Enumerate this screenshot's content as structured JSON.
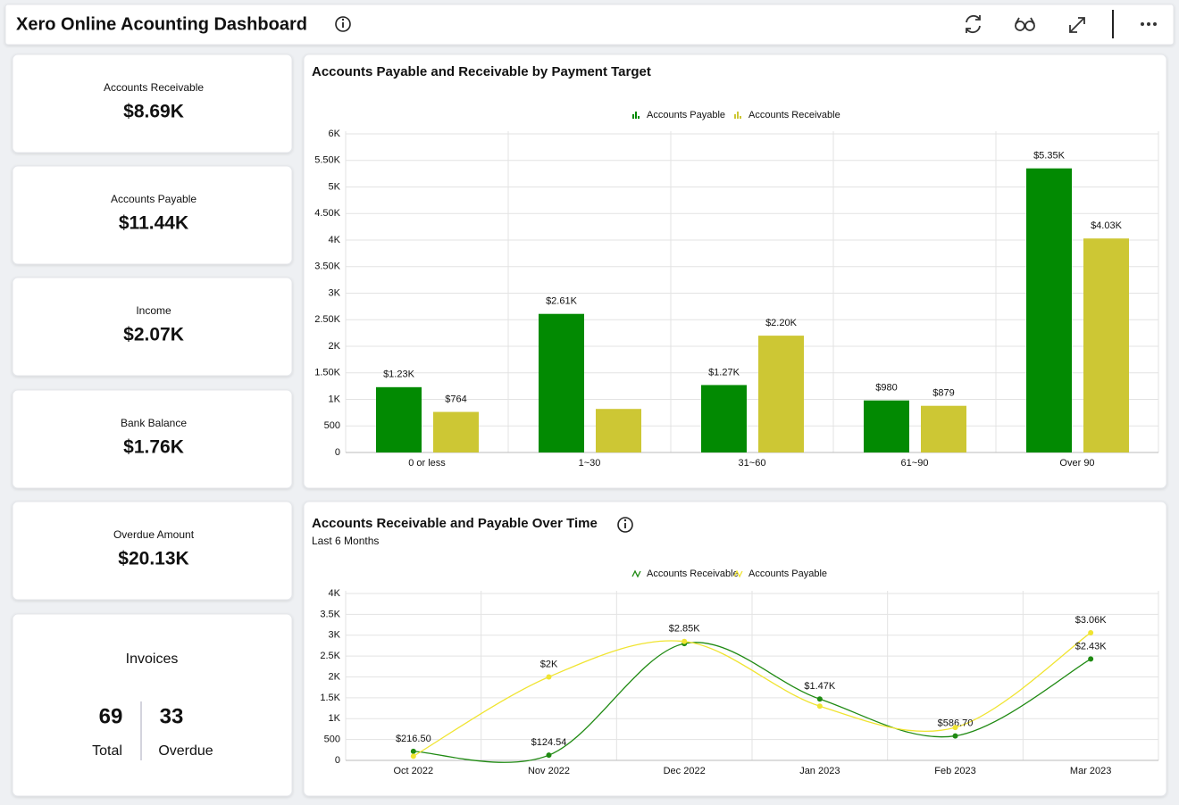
{
  "header": {
    "title": "Xero Online Acounting Dashboard"
  },
  "kpis": [
    {
      "label": "Accounts Receivable",
      "value": "$8.69K"
    },
    {
      "label": "Accounts Payable",
      "value": "$11.44K"
    },
    {
      "label": "Income",
      "value": "$2.07K"
    },
    {
      "label": "Bank Balance",
      "value": "$1.76K"
    },
    {
      "label": "Overdue Amount",
      "value": "$20.13K"
    }
  ],
  "invoices": {
    "title": "Invoices",
    "total": 69,
    "total_label": "Total",
    "overdue": 33,
    "overdue_label": "Overdue"
  },
  "chart_data": [
    {
      "type": "bar",
      "title": "Accounts Payable and Receivable by Payment Target",
      "categories": [
        "0 or less",
        "1~30",
        "31~60",
        "61~90",
        "Over 90"
      ],
      "series": [
        {
          "name": "Accounts Payable",
          "color": "#028a02",
          "values": [
            1230,
            2610,
            1270,
            980,
            5350
          ],
          "value_labels": [
            "$1.23K",
            "$2.61K",
            "$1.27K",
            "$980",
            "$5.35K"
          ]
        },
        {
          "name": "Accounts Receivable",
          "color": "#cdc734",
          "values": [
            764,
            820,
            2200,
            879,
            4030
          ],
          "value_labels": [
            "$764",
            null,
            "$2.20K",
            "$879",
            "$4.03K"
          ]
        }
      ],
      "ylim": [
        0,
        6000
      ],
      "yticks": [
        0,
        500,
        {
          "value": 1000,
          "label": "1K"
        },
        {
          "value": 1500,
          "label": "1.50K"
        },
        {
          "value": 2000,
          "label": "2K"
        },
        {
          "value": 2500,
          "label": "2.50K"
        },
        {
          "value": 3000,
          "label": "3K"
        },
        {
          "value": 3500,
          "label": "3.50K"
        },
        {
          "value": 4000,
          "label": "4K"
        },
        {
          "value": 4500,
          "label": "4.50K"
        },
        {
          "value": 5000,
          "label": "5K"
        },
        {
          "value": 5500,
          "label": "5.50K"
        },
        {
          "value": 6000,
          "label": "6K"
        }
      ],
      "grid": true
    },
    {
      "type": "line",
      "title": "Accounts Receivable and Payable Over Time",
      "subtitle": "Last 6 Months",
      "categories": [
        "Oct 2022",
        "Nov 2022",
        "Dec 2022",
        "Jan 2023",
        "Feb 2023",
        "Mar 2023"
      ],
      "series": [
        {
          "name": "Accounts Receivable",
          "color": "#1f8a12",
          "values": [
            216.5,
            124.54,
            2800,
            1470,
            586.7,
            2430
          ],
          "value_labels": [
            "$216.50",
            "$124.54",
            null,
            "$1.47K",
            "$586.70",
            "$2.43K"
          ]
        },
        {
          "name": "Accounts Payable",
          "color": "#f0e431",
          "values": [
            100,
            2000,
            2850,
            1300,
            790,
            3060
          ],
          "value_labels": [
            null,
            "$2K",
            "$2.85K",
            null,
            null,
            "$3.06K"
          ]
        }
      ],
      "ylim": [
        0,
        4000
      ],
      "yticks": [
        0,
        500,
        {
          "value": 1000,
          "label": "1K"
        },
        {
          "value": 1500,
          "label": "1.5K"
        },
        {
          "value": 2000,
          "label": "2K"
        },
        {
          "value": 2500,
          "label": "2.5K"
        },
        {
          "value": 3000,
          "label": "3K"
        },
        {
          "value": 3500,
          "label": "3.5K"
        },
        {
          "value": 4000,
          "label": "4K"
        }
      ],
      "grid": true
    }
  ]
}
